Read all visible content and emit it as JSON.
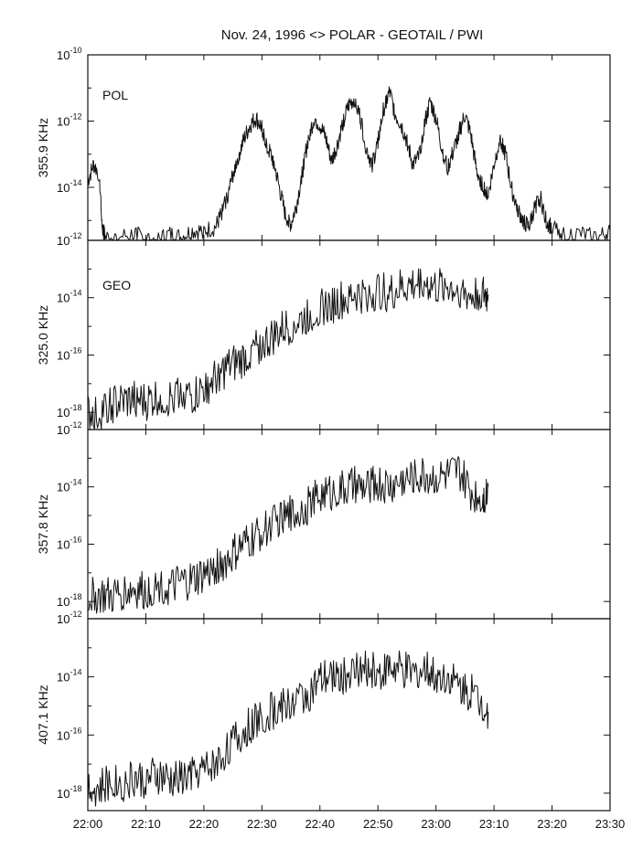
{
  "chart_data": {
    "type": "line",
    "title": "Nov. 24, 1996 <> POLAR - GEOTAIL / PWI",
    "x_axis": {
      "range_minutes": [
        0,
        90
      ],
      "ticks": [
        "22:00",
        "22:10",
        "22:20",
        "22:30",
        "22:40",
        "22:50",
        "23:00",
        "23:10",
        "23:20",
        "23:30"
      ]
    },
    "y_scale": "log",
    "panels": [
      {
        "label": "POL",
        "ylabel": "355.9 KHz",
        "ylim_exp": [
          -15.6,
          -10
        ],
        "ticks": [
          {
            "base": "10",
            "exp": "-10"
          },
          {
            "base": "10",
            "exp": "-12"
          },
          {
            "base": "10",
            "exp": "-14"
          }
        ],
        "tick_exps": [
          -10,
          -12,
          -14
        ],
        "series": {
          "x": [
            0,
            1,
            2,
            2.5,
            3,
            5,
            8,
            10,
            12,
            14,
            16,
            18,
            20,
            22,
            23,
            24,
            25,
            26,
            27,
            28,
            29,
            30,
            31,
            32,
            33,
            34,
            35,
            36,
            37,
            38,
            39,
            40,
            41,
            42,
            43,
            44,
            45,
            46,
            47,
            48,
            49,
            50,
            51,
            52,
            53,
            54,
            55,
            56,
            57,
            58,
            59,
            60,
            61,
            62,
            63,
            64,
            65,
            66,
            67,
            68,
            69,
            70,
            71,
            72,
            73,
            74,
            75,
            76,
            77,
            78,
            79,
            80,
            82,
            85,
            88,
            90
          ],
          "y": [
            -13.8,
            -13.3,
            -13.6,
            -15.2,
            -15.5,
            -15.5,
            -15.4,
            -15.5,
            -15.6,
            -15.4,
            -15.5,
            -15.3,
            -15.3,
            -15.2,
            -14.8,
            -14.3,
            -13.6,
            -13.0,
            -12.5,
            -12.1,
            -11.9,
            -12.2,
            -12.8,
            -13.2,
            -14.0,
            -14.8,
            -15.1,
            -14.5,
            -13.5,
            -12.5,
            -11.9,
            -12.1,
            -12.5,
            -13.2,
            -12.7,
            -12.0,
            -11.5,
            -11.3,
            -11.9,
            -12.8,
            -13.3,
            -12.6,
            -11.6,
            -11.1,
            -11.8,
            -12.1,
            -12.6,
            -13.3,
            -13.1,
            -12.1,
            -11.4,
            -11.9,
            -12.8,
            -13.4,
            -12.9,
            -12.3,
            -11.8,
            -12.4,
            -13.5,
            -13.9,
            -14.2,
            -13.3,
            -12.5,
            -13.0,
            -14.0,
            -14.6,
            -15.0,
            -15.2,
            -14.6,
            -14.3,
            -15.0,
            -15.2,
            -15.4,
            -15.4,
            -15.5,
            -15.3
          ]
        }
      },
      {
        "label": "GEO",
        "ylabel": "325.0 KHz",
        "ylim_exp": [
          -18.6,
          -12
        ],
        "ticks": [
          {
            "base": "10",
            "exp": "-12"
          },
          {
            "base": "10",
            "exp": "-14"
          },
          {
            "base": "10",
            "exp": "-16"
          },
          {
            "base": "10",
            "exp": "-18"
          }
        ],
        "tick_exps": [
          -12,
          -14,
          -16,
          -18
        ],
        "series": {
          "x": [
            0,
            2,
            4,
            6,
            8,
            10,
            12,
            14,
            16,
            18,
            20,
            22,
            24,
            26,
            28,
            30,
            32,
            34,
            36,
            38,
            40,
            42,
            44,
            46,
            48,
            50,
            52,
            54,
            56,
            58,
            60,
            62,
            64,
            66,
            68,
            69
          ],
          "y": [
            -18.0,
            -17.9,
            -17.7,
            -17.6,
            -17.5,
            -17.6,
            -17.4,
            -17.5,
            -17.2,
            -17.4,
            -17.1,
            -16.8,
            -16.4,
            -16.2,
            -15.9,
            -15.6,
            -15.3,
            -15.0,
            -14.8,
            -14.6,
            -14.3,
            -14.2,
            -14.0,
            -13.8,
            -13.9,
            -13.7,
            -13.8,
            -13.6,
            -13.5,
            -13.4,
            -13.6,
            -13.5,
            -13.7,
            -13.9,
            -13.8,
            -13.9
          ]
        }
      },
      {
        "label": "",
        "ylabel": "357.8 KHz",
        "ylim_exp": [
          -18.6,
          -12
        ],
        "ticks": [
          {
            "base": "10",
            "exp": "-12"
          },
          {
            "base": "10",
            "exp": "-14"
          },
          {
            "base": "10",
            "exp": "-16"
          },
          {
            "base": "10",
            "exp": "-18"
          }
        ],
        "tick_exps": [
          -12,
          -14,
          -16,
          -18
        ],
        "series": {
          "x": [
            0,
            2,
            4,
            6,
            8,
            10,
            12,
            14,
            16,
            18,
            20,
            22,
            24,
            26,
            28,
            30,
            32,
            34,
            36,
            38,
            40,
            42,
            44,
            46,
            48,
            50,
            52,
            54,
            56,
            58,
            60,
            62,
            64,
            66,
            68,
            69
          ],
          "y": [
            -17.8,
            -17.7,
            -17.8,
            -17.6,
            -17.5,
            -17.6,
            -17.4,
            -17.5,
            -17.3,
            -17.2,
            -17.0,
            -16.8,
            -16.5,
            -16.1,
            -15.8,
            -15.5,
            -15.2,
            -15.0,
            -14.8,
            -14.6,
            -14.2,
            -14.1,
            -14.0,
            -13.9,
            -14.0,
            -13.8,
            -13.9,
            -13.7,
            -13.6,
            -13.5,
            -13.6,
            -13.5,
            -13.4,
            -14.1,
            -14.3,
            -14.0
          ]
        }
      },
      {
        "label": "",
        "ylabel": "407.1 KHz",
        "ylim_exp": [
          -18.6,
          -12
        ],
        "ticks": [
          {
            "base": "10",
            "exp": "-12"
          },
          {
            "base": "10",
            "exp": "-14"
          },
          {
            "base": "10",
            "exp": "-16"
          },
          {
            "base": "10",
            "exp": "-18"
          }
        ],
        "tick_exps": [
          -12,
          -14,
          -16,
          -18
        ],
        "series": {
          "x": [
            0,
            2,
            4,
            6,
            8,
            10,
            12,
            14,
            16,
            18,
            20,
            22,
            24,
            26,
            28,
            30,
            32,
            34,
            36,
            38,
            40,
            42,
            44,
            46,
            48,
            50,
            52,
            54,
            56,
            58,
            60,
            62,
            64,
            66,
            68,
            69
          ],
          "y": [
            -17.6,
            -17.8,
            -17.5,
            -17.6,
            -17.4,
            -17.5,
            -17.3,
            -17.5,
            -17.4,
            -17.3,
            -17.1,
            -16.9,
            -16.4,
            -16.0,
            -15.6,
            -15.3,
            -15.1,
            -14.9,
            -14.7,
            -14.5,
            -14.1,
            -13.9,
            -13.9,
            -13.8,
            -13.7,
            -13.8,
            -13.6,
            -13.7,
            -13.8,
            -13.7,
            -13.9,
            -13.9,
            -14.2,
            -14.5,
            -14.8,
            -15.2
          ]
        }
      }
    ]
  }
}
